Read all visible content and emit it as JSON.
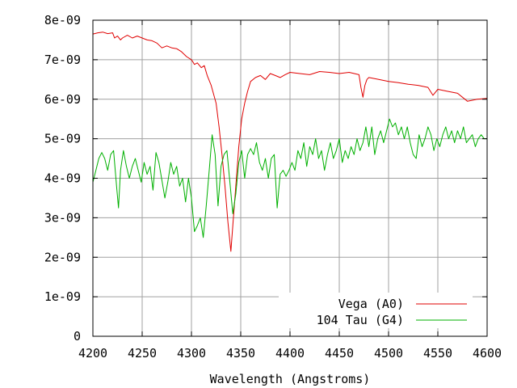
{
  "chart_data": {
    "type": "line",
    "title": "",
    "xlabel": "Wavelength (Angstroms)",
    "ylabel": "",
    "xlim": [
      4200,
      4600
    ],
    "ylim": [
      0,
      8e-09
    ],
    "xticks": [
      4200,
      4250,
      4300,
      4350,
      4400,
      4450,
      4500,
      4550,
      4600
    ],
    "xtick_labels": [
      "4200",
      "4250",
      "4300",
      "4350",
      "4400",
      "4450",
      "4500",
      "4550",
      "4600"
    ],
    "yticks": [
      0,
      1e-09,
      2e-09,
      3e-09,
      4e-09,
      5e-09,
      6e-09,
      7e-09,
      8e-09
    ],
    "ytick_labels": [
      "0",
      "1e-09",
      "2e-09",
      "3e-09",
      "4e-09",
      "5e-09",
      "6e-09",
      "7e-09",
      "8e-09"
    ],
    "grid": true,
    "legend_position": "bottom-right",
    "series": [
      {
        "name": "Vega (A0)",
        "color": "#e00000",
        "x": [
          4200,
          4205,
          4210,
          4215,
          4220,
          4222,
          4225,
          4228,
          4230,
          4235,
          4240,
          4245,
          4250,
          4255,
          4260,
          4265,
          4270,
          4275,
          4280,
          4285,
          4290,
          4295,
          4300,
          4303,
          4306,
          4310,
          4313,
          4316,
          4320,
          4325,
          4328,
          4331,
          4334,
          4337,
          4340,
          4342,
          4345,
          4348,
          4351,
          4354,
          4357,
          4360,
          4365,
          4370,
          4375,
          4380,
          4385,
          4390,
          4395,
          4400,
          4410,
          4420,
          4430,
          4440,
          4450,
          4460,
          4470,
          4472,
          4474,
          4476,
          4478,
          4480,
          4490,
          4500,
          4510,
          4520,
          4530,
          4540,
          4545,
          4550,
          4560,
          4570,
          4575,
          4580,
          4590,
          4600
        ],
        "y": [
          7.65e-09,
          7.68e-09,
          7.7e-09,
          7.66e-09,
          7.68e-09,
          7.55e-09,
          7.6e-09,
          7.5e-09,
          7.55e-09,
          7.62e-09,
          7.55e-09,
          7.6e-09,
          7.55e-09,
          7.5e-09,
          7.48e-09,
          7.42e-09,
          7.3e-09,
          7.35e-09,
          7.3e-09,
          7.28e-09,
          7.2e-09,
          7.08e-09,
          7e-09,
          6.88e-09,
          6.92e-09,
          6.8e-09,
          6.85e-09,
          6.6e-09,
          6.35e-09,
          5.9e-09,
          5.3e-09,
          4.6e-09,
          3.8e-09,
          2.9e-09,
          2.15e-09,
          2.8e-09,
          3.8e-09,
          4.8e-09,
          5.5e-09,
          5.9e-09,
          6.2e-09,
          6.45e-09,
          6.55e-09,
          6.6e-09,
          6.5e-09,
          6.65e-09,
          6.6e-09,
          6.55e-09,
          6.62e-09,
          6.68e-09,
          6.65e-09,
          6.62e-09,
          6.7e-09,
          6.68e-09,
          6.65e-09,
          6.68e-09,
          6.62e-09,
          6.3e-09,
          6.05e-09,
          6.35e-09,
          6.5e-09,
          6.55e-09,
          6.5e-09,
          6.45e-09,
          6.42e-09,
          6.38e-09,
          6.35e-09,
          6.3e-09,
          6.1e-09,
          6.25e-09,
          6.2e-09,
          6.15e-09,
          6.05e-09,
          5.95e-09,
          6e-09,
          6.02e-09
        ]
      },
      {
        "name": "104 Tau (G4)",
        "color": "#00b000",
        "x": [
          4200,
          4203,
          4206,
          4209,
          4212,
          4215,
          4218,
          4221,
          4224,
          4226,
          4228,
          4231,
          4234,
          4237,
          4240,
          4243,
          4246,
          4249,
          4252,
          4255,
          4258,
          4261,
          4264,
          4267,
          4270,
          4273,
          4276,
          4279,
          4282,
          4285,
          4288,
          4291,
          4294,
          4297,
          4300,
          4303,
          4306,
          4309,
          4312,
          4315,
          4318,
          4321,
          4324,
          4327,
          4330,
          4333,
          4336,
          4339,
          4342,
          4345,
          4348,
          4351,
          4354,
          4357,
          4360,
          4363,
          4366,
          4369,
          4372,
          4375,
          4378,
          4381,
          4384,
          4387,
          4390,
          4393,
          4396,
          4399,
          4402,
          4405,
          4408,
          4411,
          4414,
          4417,
          4420,
          4423,
          4426,
          4429,
          4432,
          4435,
          4438,
          4441,
          4444,
          4447,
          4450,
          4453,
          4456,
          4459,
          4462,
          4465,
          4468,
          4471,
          4474,
          4477,
          4480,
          4483,
          4486,
          4489,
          4492,
          4495,
          4498,
          4501,
          4504,
          4507,
          4510,
          4513,
          4516,
          4519,
          4522,
          4525,
          4528,
          4531,
          4534,
          4537,
          4540,
          4543,
          4546,
          4549,
          4552,
          4555,
          4558,
          4561,
          4564,
          4567,
          4570,
          4573,
          4576,
          4579,
          4582,
          4585,
          4588,
          4591,
          4594,
          4597,
          4600
        ],
        "y": [
          3.9e-09,
          4.2e-09,
          4.5e-09,
          4.65e-09,
          4.5e-09,
          4.2e-09,
          4.6e-09,
          4.7e-09,
          3.8e-09,
          3.25e-09,
          4.2e-09,
          4.7e-09,
          4.3e-09,
          4e-09,
          4.3e-09,
          4.5e-09,
          4.2e-09,
          3.9e-09,
          4.4e-09,
          4.1e-09,
          4.3e-09,
          3.7e-09,
          4.65e-09,
          4.4e-09,
          3.95e-09,
          3.5e-09,
          3.9e-09,
          4.4e-09,
          4.1e-09,
          4.3e-09,
          3.8e-09,
          4e-09,
          3.4e-09,
          4e-09,
          3.5e-09,
          2.65e-09,
          2.8e-09,
          3e-09,
          2.5e-09,
          3.3e-09,
          4.2e-09,
          5.1e-09,
          4.6e-09,
          3.3e-09,
          4.3e-09,
          4.6e-09,
          4.7e-09,
          3.9e-09,
          3.1e-09,
          3.6e-09,
          4.4e-09,
          4.7e-09,
          4e-09,
          4.6e-09,
          4.75e-09,
          4.6e-09,
          4.9e-09,
          4.4e-09,
          4.2e-09,
          4.5e-09,
          4e-09,
          4.5e-09,
          4.6e-09,
          3.25e-09,
          4.1e-09,
          4.2e-09,
          4.05e-09,
          4.2e-09,
          4.4e-09,
          4.2e-09,
          4.7e-09,
          4.5e-09,
          4.9e-09,
          4.3e-09,
          4.8e-09,
          4.6e-09,
          5e-09,
          4.5e-09,
          4.7e-09,
          4.2e-09,
          4.6e-09,
          4.9e-09,
          4.5e-09,
          4.7e-09,
          5e-09,
          4.4e-09,
          4.7e-09,
          4.5e-09,
          4.8e-09,
          4.6e-09,
          5e-09,
          4.7e-09,
          4.9e-09,
          5.3e-09,
          4.8e-09,
          5.3e-09,
          4.6e-09,
          5e-09,
          5.2e-09,
          4.9e-09,
          5.2e-09,
          5.5e-09,
          5.3e-09,
          5.4e-09,
          5.1e-09,
          5.3e-09,
          5e-09,
          5.3e-09,
          4.9e-09,
          4.6e-09,
          4.5e-09,
          5.1e-09,
          4.8e-09,
          5e-09,
          5.3e-09,
          5.1e-09,
          4.7e-09,
          5e-09,
          4.8e-09,
          5.1e-09,
          5.3e-09,
          5e-09,
          5.2e-09,
          4.9e-09,
          5.2e-09,
          5e-09,
          5.3e-09,
          4.9e-09,
          5e-09,
          5.1e-09,
          4.8e-09,
          5e-09,
          5.1e-09,
          5e-09,
          5e-09
        ]
      }
    ]
  }
}
